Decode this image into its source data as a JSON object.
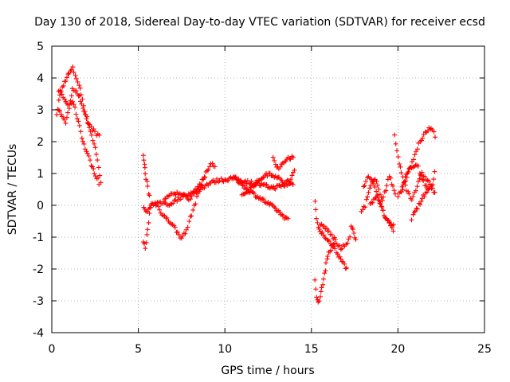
{
  "chart_data": {
    "type": "scatter",
    "title": "Day 130 of 2018, Sidereal Day-to-day VTEC variation (SDTVAR) for receiver ecsd",
    "xlabel": "GPS time / hours",
    "ylabel": "SDTVAR / TECUs",
    "xlim": [
      0,
      25
    ],
    "ylim": [
      -4,
      5
    ],
    "xticks": [
      0,
      5,
      10,
      15,
      20,
      25
    ],
    "yticks": [
      -4,
      -3,
      -2,
      -1,
      0,
      1,
      2,
      3,
      4,
      5
    ],
    "xtick_labels": [
      "0",
      "5",
      "10",
      "15",
      "20",
      "25"
    ],
    "ytick_labels": [
      "-4",
      "-3",
      "-2",
      "-1",
      "0",
      "1",
      "2",
      "3",
      "4",
      "5"
    ],
    "grid": true,
    "marker": "+",
    "color": "#ff0000",
    "series": [
      {
        "name": "SDTVAR",
        "segments": [
          {
            "x": [
              0.3,
              0.4,
              0.6,
              0.8,
              1.0,
              1.2,
              1.35,
              1.5,
              1.7,
              1.9,
              2.1,
              2.3,
              2.5,
              2.7,
              2.9
            ],
            "y": [
              2.8,
              3.3,
              3.7,
              3.95,
              4.15,
              4.3,
              4.1,
              3.9,
              3.5,
              3.0,
              2.6,
              2.2,
              1.8,
              1.2,
              0.5
            ]
          },
          {
            "x": [
              0.4,
              0.6,
              0.8,
              1.0,
              1.2,
              1.4,
              1.6,
              1.8,
              2.0,
              2.2,
              2.5,
              2.8
            ],
            "y": [
              3.6,
              3.5,
              3.3,
              3.0,
              3.7,
              3.6,
              3.4,
              3.0,
              2.7,
              2.5,
              2.3,
              2.1
            ]
          },
          {
            "x": [
              0.4,
              0.6,
              0.8,
              1.0,
              1.2,
              1.4,
              1.6,
              1.8,
              2.0,
              2.2,
              2.4,
              2.6,
              2.8
            ],
            "y": [
              3.0,
              2.8,
              2.6,
              3.1,
              3.3,
              2.9,
              2.5,
              2.0,
              1.7,
              1.4,
              1.1,
              0.9,
              0.6
            ]
          },
          {
            "x": [
              5.3,
              5.35,
              5.4,
              5.5,
              5.6,
              5.7
            ],
            "y": [
              1.55,
              1.3,
              1.0,
              0.7,
              0.4,
              0.2
            ]
          },
          {
            "x": [
              5.3,
              5.4,
              5.5,
              5.6,
              5.7,
              5.8
            ],
            "y": [
              -1.1,
              -1.35,
              -0.9,
              -0.5,
              -0.1,
              0.1
            ]
          },
          {
            "x": [
              5.3,
              5.5,
              5.8,
              6.1,
              6.4,
              6.7,
              7.0,
              7.3,
              7.6,
              7.9,
              8.2,
              8.5,
              8.8,
              9.1,
              9.4,
              9.7,
              10.0,
              10.4,
              10.8,
              11.2,
              11.6,
              12.0,
              12.4,
              12.8,
              13.2,
              13.6,
              14.0
            ],
            "y": [
              -0.1,
              -0.2,
              0.0,
              0.05,
              0.1,
              0.0,
              0.1,
              0.2,
              0.3,
              0.35,
              0.4,
              0.5,
              0.6,
              0.7,
              0.75,
              0.8,
              0.8,
              0.85,
              0.8,
              0.75,
              0.7,
              0.65,
              0.6,
              0.55,
              0.6,
              0.65,
              0.7
            ]
          },
          {
            "x": [
              6.0,
              6.3,
              6.6,
              6.9,
              7.2,
              7.4,
              7.7,
              8.0,
              8.3,
              8.6,
              8.9,
              9.2,
              9.5
            ],
            "y": [
              0.1,
              -0.2,
              -0.4,
              -0.55,
              -0.8,
              -1.0,
              -0.9,
              -0.4,
              0.1,
              0.6,
              1.0,
              1.3,
              1.2
            ]
          },
          {
            "x": [
              6.5,
              6.8,
              7.1,
              7.4,
              7.7,
              8.0,
              8.3,
              8.6,
              8.9
            ],
            "y": [
              0.2,
              0.3,
              0.35,
              0.4,
              0.3,
              0.2,
              0.5,
              0.7,
              0.9
            ]
          },
          {
            "x": [
              10.5,
              10.9,
              11.3,
              11.7,
              12.1,
              12.5,
              12.9,
              13.3,
              13.7
            ],
            "y": [
              0.9,
              0.7,
              0.5,
              0.35,
              0.2,
              0.05,
              -0.1,
              -0.3,
              -0.5
            ]
          },
          {
            "x": [
              11.0,
              11.4,
              11.8,
              12.2,
              12.6,
              13.0,
              13.4,
              13.8,
              14.1
            ],
            "y": [
              0.3,
              0.5,
              0.7,
              0.9,
              1.0,
              0.9,
              0.7,
              0.8,
              1.2
            ]
          },
          {
            "x": [
              12.8,
              13.0,
              13.2,
              13.4,
              13.6,
              13.8,
              14.0
            ],
            "y": [
              1.5,
              1.2,
              1.2,
              1.35,
              1.5,
              1.5,
              1.45
            ]
          },
          {
            "x": [
              15.2,
              15.3,
              15.4,
              15.5,
              15.7,
              15.9,
              16.1,
              16.3,
              16.5,
              16.7,
              16.9,
              17.1
            ],
            "y": [
              0.1,
              -0.4,
              -0.7,
              -0.8,
              -0.9,
              -1.1,
              -1.2,
              -1.3,
              -1.5,
              -1.7,
              -1.9,
              -2.0
            ]
          },
          {
            "x": [
              15.2,
              15.3,
              15.4,
              15.5,
              15.6,
              15.7,
              15.8,
              15.9,
              16.0,
              16.2,
              16.4
            ],
            "y": [
              -2.3,
              -2.9,
              -3.0,
              -2.9,
              -2.6,
              -2.3,
              -2.0,
              -1.7,
              -1.5,
              -1.3,
              -1.2
            ]
          },
          {
            "x": [
              15.5,
              15.8,
              16.1,
              16.4,
              16.7,
              17.0,
              17.3
            ],
            "y": [
              -0.6,
              -0.7,
              -0.9,
              -1.1,
              -1.4,
              -1.2,
              -1.0
            ]
          },
          {
            "x": [
              17.3,
              17.4,
              17.5,
              17.6
            ],
            "y": [
              -0.6,
              -0.8,
              -1.0,
              -1.2
            ]
          },
          {
            "x": [
              17.9,
              18.1,
              18.3,
              18.5,
              18.7,
              18.9,
              19.1,
              19.3,
              19.5,
              19.7,
              19.9
            ],
            "y": [
              -0.2,
              0.0,
              0.4,
              0.7,
              0.8,
              0.5,
              0.2,
              0.5,
              0.9,
              0.6,
              0.3
            ]
          },
          {
            "x": [
              18.0,
              18.3,
              18.6,
              18.9,
              19.2,
              19.5,
              19.8
            ],
            "y": [
              0.6,
              0.9,
              0.7,
              0.2,
              -0.3,
              -0.6,
              -0.8
            ]
          },
          {
            "x": [
              18.4,
              18.6,
              18.8,
              19.0,
              19.2,
              19.4,
              19.6,
              19.8
            ],
            "y": [
              0.0,
              0.2,
              0.3,
              0.0,
              -0.3,
              -0.5,
              -0.6,
              -0.7
            ]
          },
          {
            "x": [
              19.8,
              20.0,
              20.2,
              20.5,
              20.8,
              21.1,
              21.4,
              21.7,
              22.0,
              22.2
            ],
            "y": [
              2.2,
              1.5,
              1.0,
              0.5,
              0.2,
              0.6,
              1.0,
              0.8,
              0.5,
              0.3
            ]
          },
          {
            "x": [
              20.0,
              20.3,
              20.6,
              20.9,
              21.2,
              21.5,
              21.8,
              22.0,
              22.2
            ],
            "y": [
              0.3,
              0.6,
              1.0,
              1.5,
              1.9,
              2.2,
              2.4,
              2.4,
              2.1
            ]
          },
          {
            "x": [
              20.2,
              20.5,
              20.8,
              21.1,
              21.4,
              21.7,
              22.0,
              22.2
            ],
            "y": [
              0.4,
              1.0,
              1.2,
              1.3,
              0.8,
              0.5,
              0.6,
              1.3
            ]
          },
          {
            "x": [
              20.8,
              21.0,
              21.2,
              21.4,
              21.6,
              21.8
            ],
            "y": [
              -0.4,
              -0.2,
              0.0,
              0.2,
              0.4,
              0.5
            ]
          }
        ]
      }
    ]
  }
}
